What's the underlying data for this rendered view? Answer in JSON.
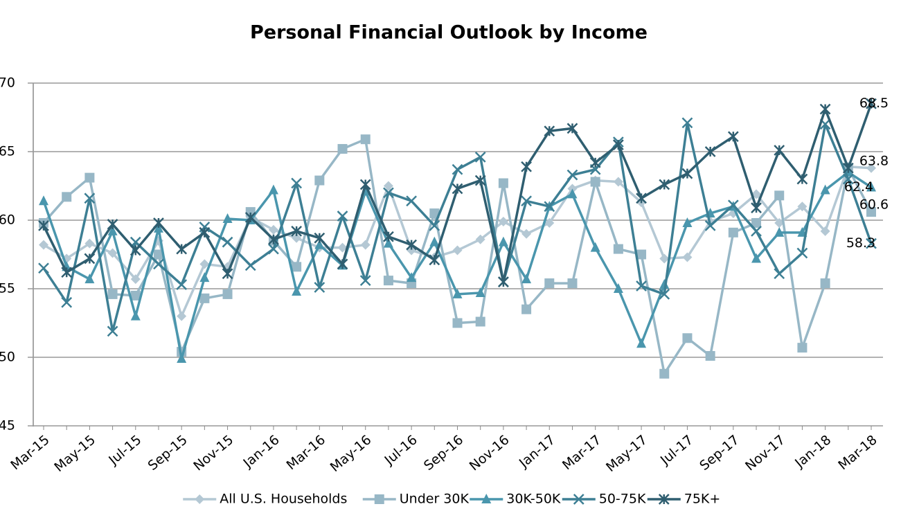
{
  "chart_data": {
    "type": "line",
    "title": "Personal Financial Outlook by Income",
    "categories": [
      "Mar-15",
      null,
      "May-15",
      null,
      "Jul-15",
      null,
      "Sep-15",
      null,
      "Nov-15",
      null,
      "Jan-16",
      null,
      "Mar-16",
      null,
      "May-16",
      null,
      "Jul-16",
      null,
      "Sep-16",
      null,
      "Nov-16",
      null,
      "Jan-17",
      null,
      "Mar-17",
      null,
      "May-17",
      null,
      "Jul-17",
      null,
      "Sep-17",
      null,
      "Nov-17",
      null,
      "Jan-18",
      null,
      "Mar-18"
    ],
    "series": [
      {
        "name": "All U.S. Households",
        "color": "#b4c8d4",
        "marker": "diamond",
        "values": [
          58.2,
          57.2,
          58.3,
          57.6,
          55.7,
          58.5,
          53.0,
          56.8,
          56.6,
          60.2,
          59.3,
          58.7,
          58.0,
          58.0,
          58.2,
          62.5,
          57.8,
          57.3,
          57.8,
          58.6,
          59.9,
          59.0,
          59.8,
          62.3,
          62.9,
          62.8,
          61.3,
          57.2,
          57.3,
          59.9,
          60.5,
          61.9,
          59.8,
          61.0,
          59.2,
          63.9,
          63.8
        ]
      },
      {
        "name": "Under 30K",
        "color": "#97b7c6",
        "marker": "square",
        "values": [
          59.8,
          61.7,
          63.1,
          54.6,
          54.5,
          57.5,
          50.4,
          54.3,
          54.6,
          60.6,
          58.5,
          56.6,
          62.9,
          65.2,
          65.9,
          55.6,
          55.4,
          60.5,
          52.5,
          52.6,
          62.7,
          53.5,
          55.4,
          55.4,
          62.8,
          57.9,
          57.5,
          48.8,
          51.4,
          50.1,
          59.1,
          59.8,
          61.8,
          50.7,
          55.4,
          63.8,
          60.6
        ]
      },
      {
        "name": "30K-50K",
        "color": "#4a96ad",
        "marker": "triangle",
        "values": [
          61.4,
          56.6,
          55.7,
          59.2,
          53.0,
          59.4,
          49.9,
          55.8,
          60.1,
          60.0,
          62.2,
          54.8,
          58.2,
          56.7,
          62.1,
          58.3,
          55.8,
          58.4,
          54.6,
          54.7,
          58.4,
          55.7,
          61.0,
          61.9,
          58.0,
          55.0,
          51.0,
          55.3,
          59.8,
          60.5,
          61.0,
          57.2,
          59.1,
          59.1,
          62.2,
          63.5,
          62.4
        ]
      },
      {
        "name": "50-75K",
        "color": "#3d7f94",
        "marker": "x",
        "values": [
          56.5,
          54.0,
          61.6,
          51.9,
          58.4,
          56.8,
          55.3,
          59.5,
          58.4,
          56.7,
          57.9,
          62.7,
          55.1,
          60.3,
          55.6,
          62.0,
          61.4,
          59.6,
          63.7,
          64.6,
          55.5,
          61.4,
          61.0,
          63.3,
          63.7,
          65.7,
          55.2,
          54.6,
          67.1,
          59.6,
          61.1,
          59.2,
          56.1,
          57.6,
          67.0,
          63.0,
          58.3
        ]
      },
      {
        "name": "75K+",
        "color": "#2f5e70",
        "marker": "star",
        "values": [
          59.6,
          56.2,
          57.2,
          59.7,
          57.8,
          59.8,
          57.9,
          59.1,
          56.1,
          60.2,
          58.6,
          59.2,
          58.7,
          56.8,
          62.6,
          58.8,
          58.2,
          57.1,
          62.3,
          62.9,
          55.5,
          63.9,
          66.5,
          66.7,
          64.2,
          65.5,
          61.6,
          62.6,
          63.4,
          65.0,
          66.1,
          60.9,
          65.1,
          63.0,
          68.1,
          63.8,
          68.5
        ]
      }
    ],
    "ylim": [
      45,
      70
    ],
    "yticks": [
      45,
      50,
      55,
      60,
      65,
      70
    ],
    "grid": true,
    "legend": "bottom"
  }
}
